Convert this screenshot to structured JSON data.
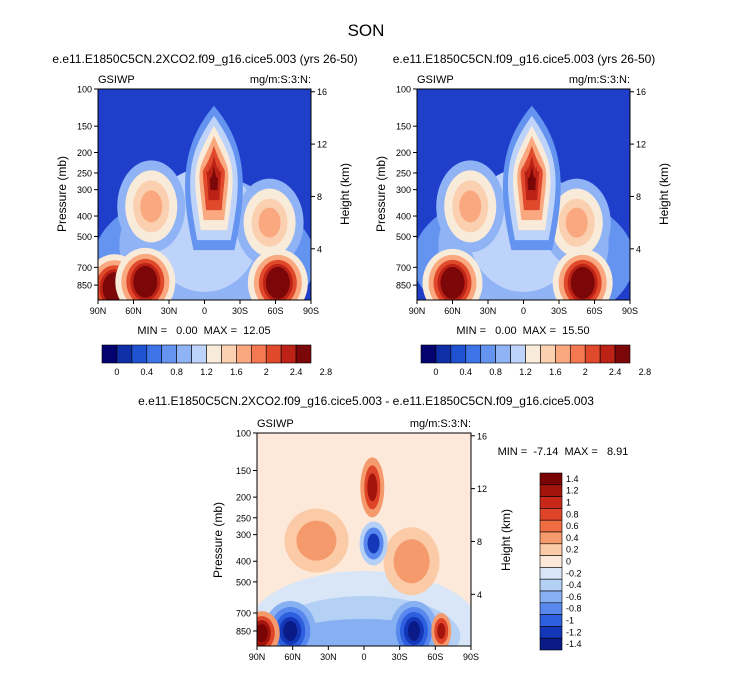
{
  "figure": {
    "main_title": "SON"
  },
  "panels": [
    {
      "id": "p1",
      "title": "e.e11.E1850C5CN.2XCO2.f09_g16.cice5.003 (yrs 26-50)",
      "corner_left": "GSIWP",
      "corner_right": "mg/m:S:3:N:",
      "stats": "MIN =   0.00  MAX =  12.05",
      "ylabel_left": "Pressure (mb)",
      "ylabel_right": "Height (km)"
    },
    {
      "id": "p2",
      "title": "e.e11.E1850C5CN.f09_g16.cice5.003 (yrs 26-50)",
      "corner_left": "GSIWP",
      "corner_right": "mg/m:S:3:N:",
      "stats": "MIN =   0.00  MAX =  15.50",
      "ylabel_left": "Pressure (mb)",
      "ylabel_right": "Height (km)"
    },
    {
      "id": "p3",
      "title": "e.e11.E1850C5CN.2XCO2.f09_g16.cice5.003 - e.e11.E1850C5CN.f09_g16.cice5.003",
      "corner_left": "GSIWP",
      "corner_right": "mg/m:S:3:N:",
      "stats": "MIN =  -7.14  MAX =   8.91",
      "ylabel_left": "Pressure (mb)",
      "ylabel_right": "Height (km)"
    }
  ],
  "chart_data": [
    {
      "type": "heatmap",
      "panel": "p1",
      "x_ticks": [
        "90N",
        "60N",
        "30N",
        "0",
        "30S",
        "60S",
        "90S"
      ],
      "y_ticks": [
        "100",
        "150",
        "200",
        "250",
        "300",
        "400",
        "500",
        "700",
        "850"
      ],
      "y_right_ticks": [
        "16",
        "12",
        "8",
        "4"
      ],
      "xlim": [
        90,
        -90
      ],
      "ylim": [
        1000,
        100
      ],
      "min": 0.0,
      "max": 12.05,
      "colorbar_labels": [
        "0",
        "0.4",
        "0.8",
        "1.2",
        "1.6",
        "2",
        "2.4",
        "2.8"
      ],
      "features": [
        {
          "lat": -8,
          "p": 230,
          "value": 3.0
        },
        {
          "lat": 76,
          "p": 880,
          "value": 2.8
        },
        {
          "lat": 50,
          "p": 820,
          "value": 3.0
        },
        {
          "lat": -62,
          "p": 830,
          "value": 3.0
        },
        {
          "lat": 45,
          "p": 360,
          "value": 2.0
        },
        {
          "lat": -55,
          "p": 440,
          "value": 2.0
        }
      ]
    },
    {
      "type": "heatmap",
      "panel": "p2",
      "x_ticks": [
        "90N",
        "60N",
        "30N",
        "0",
        "30S",
        "60S",
        "90S"
      ],
      "y_ticks": [
        "100",
        "150",
        "200",
        "250",
        "300",
        "400",
        "500",
        "700",
        "850"
      ],
      "y_right_ticks": [
        "16",
        "12",
        "8",
        "4"
      ],
      "xlim": [
        90,
        -90
      ],
      "ylim": [
        1000,
        100
      ],
      "min": 0.0,
      "max": 15.5,
      "colorbar_labels": [
        "0",
        "0.4",
        "0.8",
        "1.2",
        "1.6",
        "2",
        "2.4",
        "2.8"
      ],
      "features": [
        {
          "lat": -7,
          "p": 230,
          "value": 3.0
        },
        {
          "lat": 60,
          "p": 830,
          "value": 3.0
        },
        {
          "lat": -50,
          "p": 830,
          "value": 3.0
        },
        {
          "lat": 45,
          "p": 360,
          "value": 2.0
        },
        {
          "lat": -45,
          "p": 420,
          "value": 2.0
        }
      ]
    },
    {
      "type": "heatmap",
      "panel": "p3",
      "x_ticks": [
        "90N",
        "60N",
        "30N",
        "0",
        "30S",
        "60S",
        "90S"
      ],
      "y_ticks": [
        "100",
        "150",
        "200",
        "250",
        "300",
        "400",
        "500",
        "700",
        "850"
      ],
      "y_right_ticks": [
        "16",
        "12",
        "8",
        "4"
      ],
      "xlim": [
        90,
        -90
      ],
      "ylim": [
        1000,
        100
      ],
      "min": -7.14,
      "max": 8.91,
      "colorbar_labels": [
        "1.4",
        "1.2",
        "1",
        "0.8",
        "0.6",
        "0.4",
        "0.2",
        "0",
        "-0.2",
        "-0.4",
        "-0.6",
        "-0.8",
        "-1",
        "-1.2",
        "-1.4"
      ],
      "features": [
        {
          "lat": 86,
          "p": 870,
          "value": 1.5
        },
        {
          "lat": 62,
          "p": 850,
          "value": -1.5
        },
        {
          "lat": -42,
          "p": 850,
          "value": -1.5
        },
        {
          "lat": -65,
          "p": 850,
          "value": 1.4
        },
        {
          "lat": -7,
          "p": 180,
          "value": 1.2
        },
        {
          "lat": -8,
          "p": 330,
          "value": -0.9
        },
        {
          "lat": 40,
          "p": 320,
          "value": 0.4
        },
        {
          "lat": -40,
          "p": 400,
          "value": 0.4
        }
      ]
    }
  ],
  "colors": {
    "sequential": [
      "#04026e",
      "#0f2fa6",
      "#1f52d1",
      "#3e74e8",
      "#6493f0",
      "#90b3f5",
      "#bed3fa",
      "#f9ebda",
      "#fbd0b0",
      "#f9a87f",
      "#f47852",
      "#e0492c",
      "#bd2216",
      "#7c0708"
    ],
    "diverging": [
      "#7a0403",
      "#a3140d",
      "#c7281a",
      "#de4427",
      "#f06d43",
      "#f59a6c",
      "#fbcaa6",
      "#fde9da",
      "#d8e6f7",
      "#b4d0f5",
      "#86b0f2",
      "#5888ed",
      "#2e5fde",
      "#1337b8",
      "#0a1a86"
    ],
    "background_low": "#1f3fca"
  }
}
